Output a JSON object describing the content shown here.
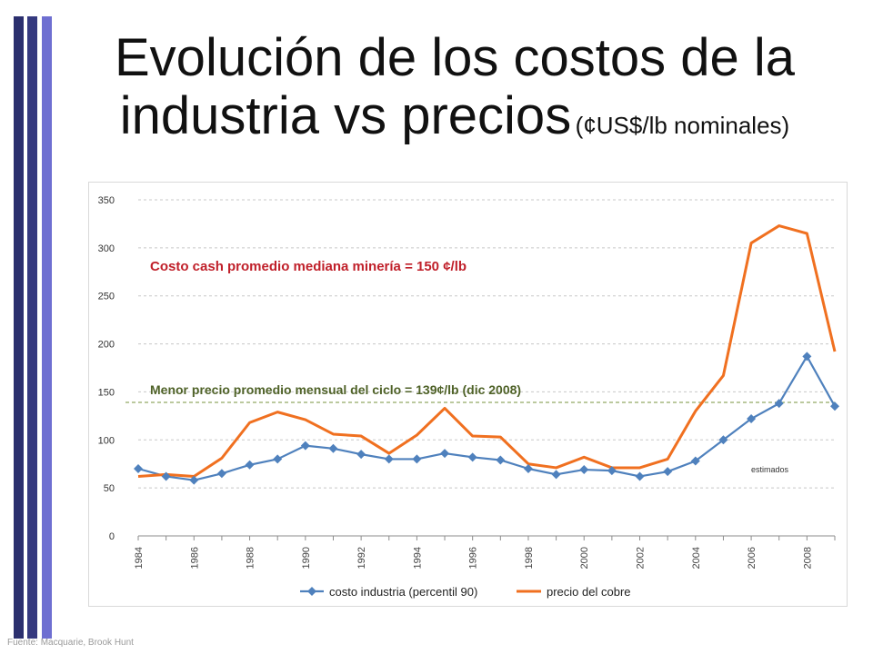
{
  "slide": {
    "title_line1": "Evolución de los costos de la",
    "title_line2": "industria vs precios",
    "title_sub": "(¢US$/lb nominales)",
    "source": "Fuente: Macquarie, Brook Hunt"
  },
  "colors": {
    "cost_series": "#4f81bd",
    "price_series": "#f07020",
    "annotation_red": "#c0202a",
    "annotation_green": "#4f6228",
    "reference_line": "#77933c",
    "grid": "#c8c8c8"
  },
  "chart_data": {
    "type": "line",
    "title": "",
    "xlabel": "",
    "ylabel": "",
    "ylim": [
      0,
      350
    ],
    "yticks": [
      0,
      50,
      100,
      150,
      200,
      250,
      300,
      350
    ],
    "x": [
      1984,
      1985,
      1986,
      1987,
      1988,
      1989,
      1990,
      1991,
      1992,
      1993,
      1994,
      1995,
      1996,
      1997,
      1998,
      1999,
      2000,
      2001,
      2002,
      2003,
      2004,
      2005,
      2006,
      2007,
      2008,
      2009
    ],
    "xtick_labels": [
      "1984",
      "1986",
      "1988",
      "1990",
      "1992",
      "1994",
      "1996",
      "1998",
      "2000",
      "2002",
      "2004",
      "2006",
      "2008"
    ],
    "grid": "horizontal dashed",
    "legend_position": "bottom",
    "series": [
      {
        "name": "costo industria (percentil 90)",
        "values": [
          70,
          62,
          58,
          65,
          74,
          80,
          94,
          91,
          85,
          80,
          80,
          86,
          82,
          79,
          70,
          64,
          69,
          68,
          62,
          67,
          78,
          100,
          122,
          138,
          187,
          135
        ],
        "marker": "diamond"
      },
      {
        "name": "precio del cobre",
        "values": [
          62,
          64,
          62,
          81,
          118,
          129,
          121,
          106,
          104,
          86,
          105,
          133,
          104,
          103,
          75,
          71,
          82,
          71,
          71,
          80,
          130,
          167,
          305,
          323,
          315,
          192
        ],
        "marker": "none"
      }
    ],
    "reference_line": {
      "value": 139
    },
    "annotations": {
      "cost_text": "Costo  cash promedio mediana minería = 150 ¢/lb",
      "min_price_text": "Menor precio promedio mensual del ciclo = 139¢/lb (dic 2008)",
      "estimated_text": "estimados"
    }
  }
}
